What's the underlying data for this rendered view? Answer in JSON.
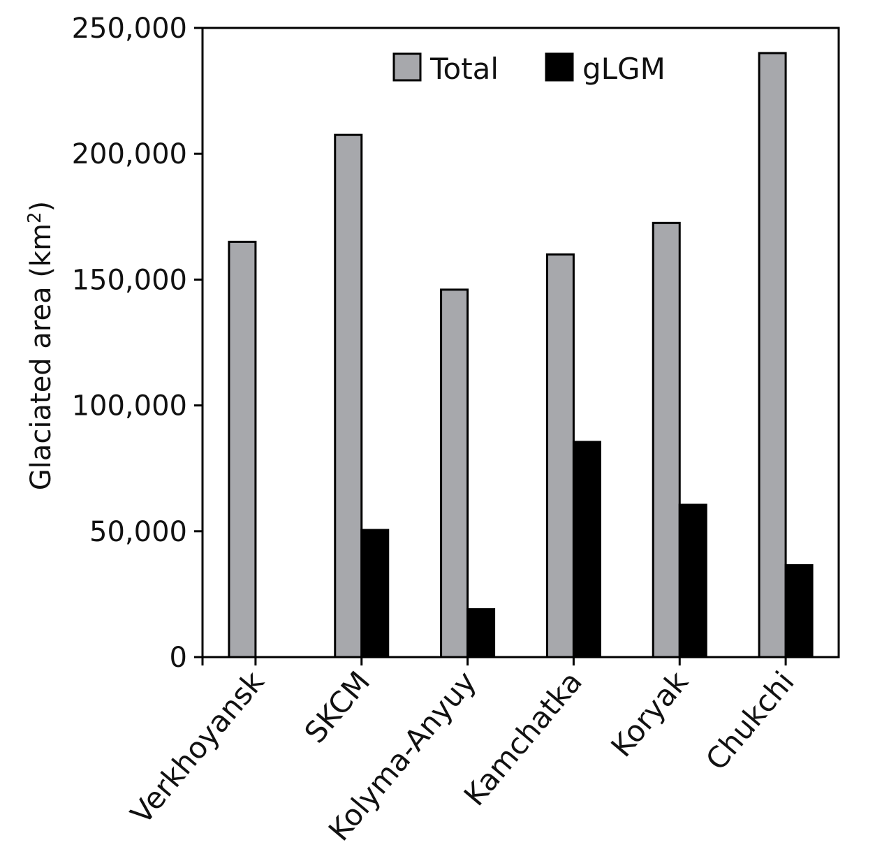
{
  "chart_data": {
    "type": "bar",
    "categories": [
      "Verkhoyansk",
      "SKCM",
      "Kolyma-Anyuy",
      "Kamchatka",
      "Koryak",
      "Chukchi"
    ],
    "series": [
      {
        "name": "Total",
        "color": "#a7a8ac",
        "values": [
          165000,
          207500,
          146000,
          160000,
          172500,
          240000
        ]
      },
      {
        "name": "gLGM",
        "color": "#000000",
        "values": [
          0,
          50500,
          19000,
          85500,
          60500,
          36500
        ]
      }
    ],
    "y_ticks": [
      "0",
      "50,000",
      "100,000",
      "150,000",
      "200,000",
      "250,000"
    ],
    "ylim": [
      0,
      250000
    ],
    "ylabel": "Glaciated area (km",
    "ylabel_sup": "2",
    "ylabel_close": ")",
    "legend_position": "top-center",
    "grid": false
  }
}
